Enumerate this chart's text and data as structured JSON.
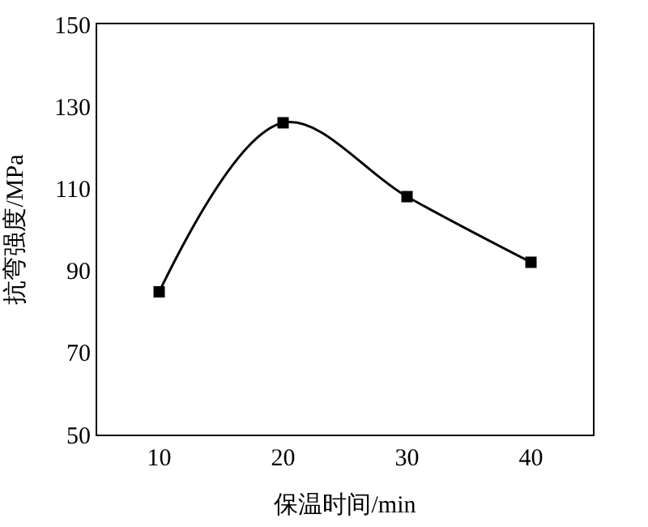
{
  "chart_data": {
    "type": "line",
    "xlabel": "保温时间/min",
    "ylabel": "抗弯强度/MPa",
    "x": [
      10,
      20,
      30,
      40
    ],
    "series": [
      {
        "color": "#000000",
        "values": [
          84.8,
          126,
          108,
          92
        ]
      }
    ],
    "xlim": [
      5,
      45
    ],
    "xticks": [
      10,
      20,
      30,
      40
    ],
    "ylim": [
      50,
      150
    ],
    "yticks": [
      50,
      70,
      90,
      110,
      130,
      150
    ],
    "grid": false,
    "marker": "square",
    "line_style": "solid"
  }
}
